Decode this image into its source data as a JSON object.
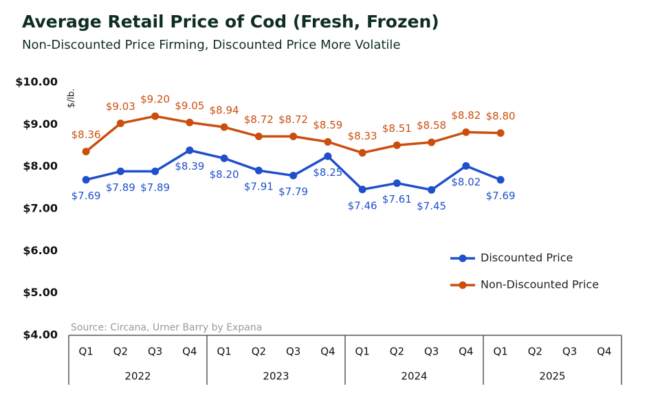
{
  "chart_data": {
    "type": "line",
    "title": "Average Retail Price of Cod (Fresh, Frozen)",
    "subtitle": "Non-Discounted Price Firming, Discounted Price More Volatile",
    "y_axis_label": "$/lb.",
    "source": "Source: Circana, Urner Barry by Expana",
    "categories": [
      "Q1",
      "Q2",
      "Q3",
      "Q4",
      "Q1",
      "Q2",
      "Q3",
      "Q4",
      "Q1",
      "Q2",
      "Q3",
      "Q4",
      "Q1",
      "Q2",
      "Q3",
      "Q4"
    ],
    "years": [
      "2022",
      "2023",
      "2024",
      "2025"
    ],
    "series": [
      {
        "name": "Discounted Price",
        "color": "#1f4fcc",
        "values": [
          7.69,
          7.89,
          7.89,
          8.39,
          8.2,
          7.91,
          7.79,
          8.25,
          7.46,
          7.61,
          7.45,
          8.02,
          7.69,
          null,
          null,
          null
        ],
        "value_labels": [
          "$7.69",
          "$7.89",
          "$7.89",
          "$8.39",
          "$8.20",
          "$7.91",
          "$7.79",
          "$8.25",
          "$7.46",
          "$7.61",
          "$7.45",
          "$8.02",
          "$7.69",
          null,
          null,
          null
        ]
      },
      {
        "name": "Non-Discounted Price",
        "color": "#cc4e0e",
        "values": [
          8.36,
          9.03,
          9.2,
          9.05,
          8.94,
          8.72,
          8.72,
          8.59,
          8.33,
          8.51,
          8.58,
          8.82,
          8.8,
          null,
          null,
          null
        ],
        "value_labels": [
          "$8.36",
          "$9.03",
          "$9.20",
          "$9.05",
          "$8.94",
          "$8.72",
          "$8.72",
          "$8.59",
          "$8.33",
          "$8.51",
          "$8.58",
          "$8.82",
          "$8.80",
          null,
          null,
          null
        ]
      }
    ],
    "ylim": [
      4,
      10
    ],
    "yticks": [
      {
        "value": 4,
        "label": "$4.00"
      },
      {
        "value": 5,
        "label": "$5.00"
      },
      {
        "value": 6,
        "label": "$6.00"
      },
      {
        "value": 7,
        "label": "$7.00"
      },
      {
        "value": 8,
        "label": "$8.00"
      },
      {
        "value": 9,
        "label": "$9.00"
      },
      {
        "value": 10,
        "label": "$10.00"
      }
    ],
    "grid": false,
    "legend": "right"
  }
}
